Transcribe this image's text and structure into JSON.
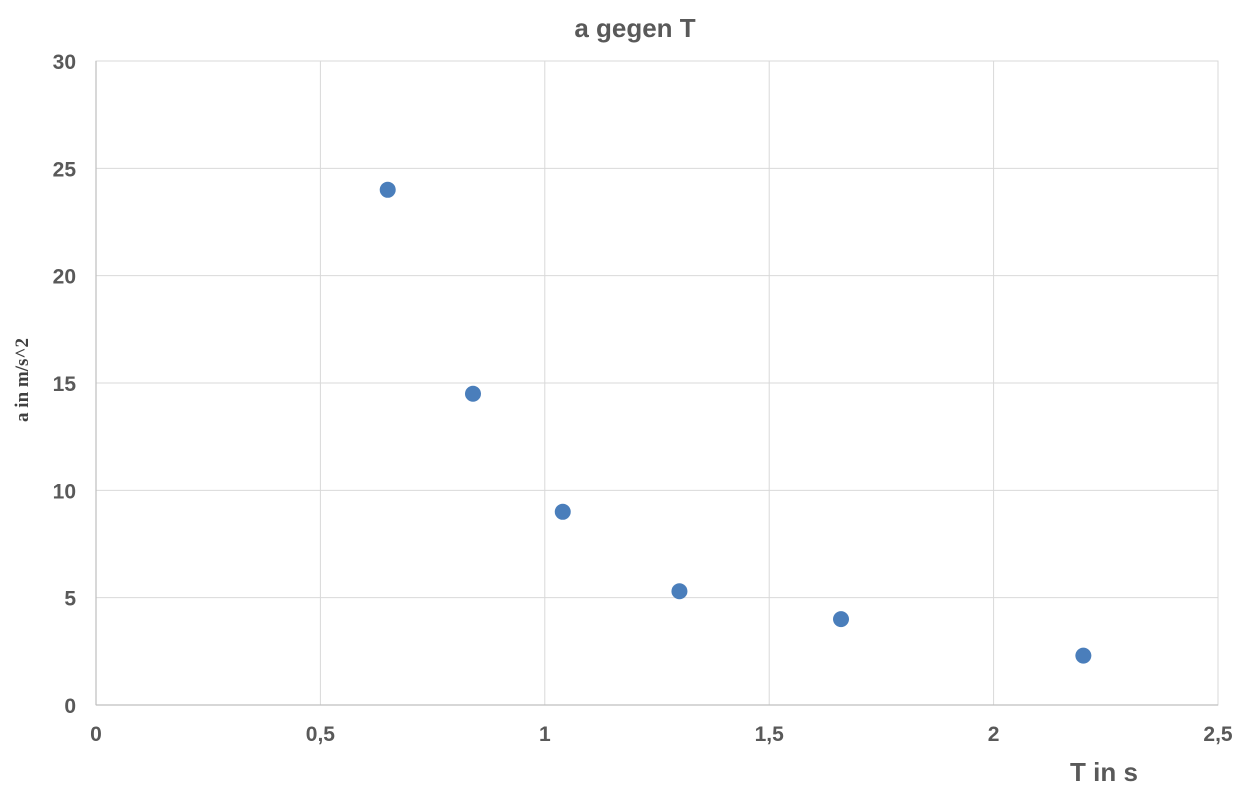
{
  "chart_data": {
    "type": "scatter",
    "title": "a gegen T",
    "xlabel": "T in s",
    "ylabel": "a in m/s^2",
    "xlim": [
      0,
      2.5
    ],
    "ylim": [
      0,
      30
    ],
    "x_ticks": [
      0,
      0.5,
      1,
      1.5,
      2,
      2.5
    ],
    "x_tick_labels": [
      "0",
      "0,5",
      "1",
      "1,5",
      "2",
      "2,5"
    ],
    "y_ticks": [
      0,
      5,
      10,
      15,
      20,
      25,
      30
    ],
    "y_tick_labels": [
      "0",
      "5",
      "10",
      "15",
      "20",
      "25",
      "30"
    ],
    "grid": true,
    "legend": "none",
    "marker_color": "#4a7ebb",
    "series": [
      {
        "points": [
          {
            "x": 0.65,
            "y": 24
          },
          {
            "x": 0.84,
            "y": 14.5
          },
          {
            "x": 1.04,
            "y": 9
          },
          {
            "x": 1.3,
            "y": 5.3
          },
          {
            "x": 1.66,
            "y": 4
          },
          {
            "x": 2.2,
            "y": 2.3
          }
        ]
      }
    ]
  }
}
